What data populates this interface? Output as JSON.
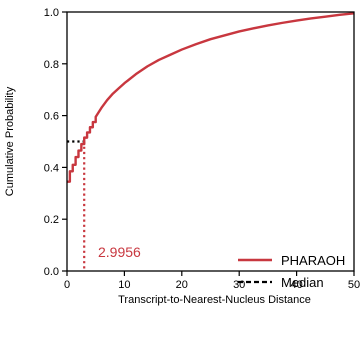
{
  "chart_data": {
    "type": "line",
    "xlabel": "Transcript-to-Nearest-Nucleus Distance",
    "ylabel": "Cumulative Probability",
    "xlim": [
      0,
      50
    ],
    "ylim": [
      0.0,
      1.0
    ],
    "x_ticks": [
      "0",
      "10",
      "20",
      "30",
      "40",
      "50"
    ],
    "y_ticks": [
      "0.0",
      "0.2",
      "0.4",
      "0.6",
      "0.8",
      "1.0"
    ],
    "grid": false,
    "legend_position": "bottom-right",
    "series": [
      {
        "name": "PHARAOH",
        "color": "#c8373f",
        "style": "step",
        "x": [
          0.0,
          0.5,
          0.5,
          1.0,
          1.0,
          1.5,
          1.5,
          2.0,
          2.0,
          2.5,
          2.5,
          3.0,
          3.0,
          3.5,
          3.5,
          4.0,
          4.0,
          4.5,
          4.5,
          5.0,
          5.0,
          6.0,
          7.0,
          8.0,
          9.0,
          10.0,
          12.0,
          14.0,
          16.0,
          18.0,
          20.0,
          22.5,
          25.0,
          27.5,
          30.0,
          32.5,
          35.0,
          37.5,
          40.0,
          42.5,
          45.0,
          47.5,
          50.0
        ],
        "y": [
          0.345,
          0.345,
          0.385,
          0.385,
          0.41,
          0.41,
          0.44,
          0.44,
          0.465,
          0.465,
          0.49,
          0.49,
          0.515,
          0.515,
          0.535,
          0.535,
          0.555,
          0.555,
          0.575,
          0.575,
          0.595,
          0.63,
          0.66,
          0.685,
          0.705,
          0.725,
          0.76,
          0.79,
          0.815,
          0.835,
          0.855,
          0.876,
          0.895,
          0.91,
          0.925,
          0.937,
          0.948,
          0.958,
          0.967,
          0.975,
          0.982,
          0.989,
          0.995
        ]
      },
      {
        "name": "Median",
        "color": "#000000",
        "style": "dashed",
        "x": [
          0,
          2.9956
        ],
        "y": [
          0.5,
          0.5
        ]
      }
    ],
    "median_value": 2.9956,
    "annotations": [
      {
        "text": "2.9956",
        "color": "#c8373f"
      }
    ]
  }
}
